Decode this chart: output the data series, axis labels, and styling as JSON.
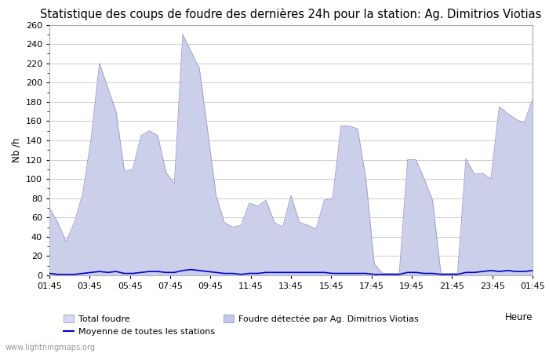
{
  "title": "Statistique des coups de foudre des dernières 24h pour la station: Ag. Dimitrios Viotias",
  "ylabel": "Nb /h",
  "xlabel": "Heure",
  "xlabels": [
    "01:45",
    "03:45",
    "05:45",
    "07:45",
    "09:45",
    "11:45",
    "13:45",
    "15:45",
    "17:45",
    "19:45",
    "21:45",
    "23:45",
    "01:45"
  ],
  "ylim": [
    0,
    260
  ],
  "yticks": [
    0,
    20,
    40,
    60,
    80,
    100,
    120,
    140,
    160,
    180,
    200,
    220,
    240,
    260
  ],
  "background_color": "#ffffff",
  "plot_bg_color": "#ffffff",
  "grid_color": "#cccccc",
  "fill_color_total": "#d8daef",
  "fill_color_station": "#c5c8e8",
  "line_color_mean": "#0000cc",
  "total_foudre": [
    70,
    55,
    35,
    55,
    85,
    142,
    220,
    195,
    170,
    108,
    110,
    145,
    150,
    145,
    107,
    95,
    250,
    232,
    215,
    150,
    83,
    55,
    50,
    52,
    75,
    72,
    78,
    55,
    50,
    83,
    55,
    52,
    48,
    78,
    80,
    155,
    155,
    152,
    100,
    12,
    2,
    2,
    2,
    120,
    120,
    100,
    78,
    2,
    2,
    2,
    121,
    105,
    106,
    100,
    175,
    168,
    162,
    158,
    183
  ],
  "station_foudre": [
    70,
    55,
    35,
    55,
    85,
    142,
    220,
    195,
    170,
    108,
    110,
    145,
    150,
    145,
    107,
    95,
    250,
    232,
    215,
    150,
    83,
    55,
    50,
    52,
    75,
    72,
    78,
    55,
    50,
    83,
    55,
    52,
    48,
    78,
    80,
    155,
    155,
    152,
    100,
    12,
    2,
    2,
    2,
    120,
    120,
    100,
    78,
    2,
    2,
    2,
    121,
    105,
    106,
    100,
    175,
    168,
    162,
    158,
    183
  ],
  "mean_foudre": [
    2,
    1,
    1,
    1,
    2,
    3,
    4,
    3,
    4,
    2,
    2,
    3,
    4,
    4,
    3,
    3,
    5,
    6,
    5,
    4,
    3,
    2,
    2,
    1,
    2,
    2,
    3,
    3,
    3,
    3,
    3,
    3,
    3,
    3,
    2,
    2,
    2,
    2,
    2,
    1,
    1,
    1,
    1,
    3,
    3,
    2,
    2,
    1,
    1,
    1,
    3,
    3,
    4,
    5,
    4,
    5,
    4,
    4,
    5
  ],
  "watermark": "www.lightningmaps.org",
  "legend_total": "Total foudre",
  "legend_mean": "Moyenne de toutes les stations",
  "legend_station": "Foudre détectée par Ag. Dimitrios Viotias",
  "title_fontsize": 10.5,
  "axis_fontsize": 8.5,
  "tick_fontsize": 8,
  "legend_fontsize": 8
}
